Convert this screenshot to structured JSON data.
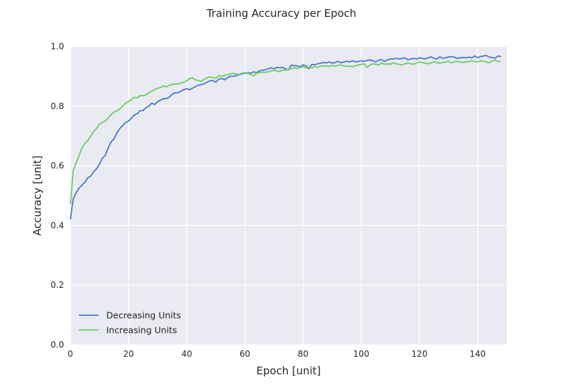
{
  "chart_data": {
    "type": "line",
    "title": "Training Accuracy per Epoch",
    "xlabel": "Epoch [unit]",
    "ylabel": "Accuracy [unit]",
    "xlim": [
      0,
      150
    ],
    "ylim": [
      0.0,
      1.0
    ],
    "xticks": [
      0,
      20,
      40,
      60,
      80,
      100,
      120,
      140
    ],
    "yticks": [
      0.0,
      0.2,
      0.4,
      0.6,
      0.8,
      1.0
    ],
    "xtick_labels": [
      "0",
      "20",
      "40",
      "60",
      "80",
      "100",
      "120",
      "140"
    ],
    "ytick_labels": [
      "0.0",
      "0.2",
      "0.4",
      "0.6",
      "0.8",
      "1.0"
    ],
    "grid": true,
    "background": "#eaeaf2",
    "legend_position": "lower-left",
    "series": [
      {
        "name": "Decreasing Units",
        "color": "#4878cf",
        "points": [
          [
            0,
            0.42
          ],
          [
            1,
            0.49
          ],
          [
            2,
            0.51
          ],
          [
            3,
            0.525
          ],
          [
            4,
            0.535
          ],
          [
            5,
            0.545
          ],
          [
            6,
            0.56
          ],
          [
            7,
            0.565
          ],
          [
            8,
            0.58
          ],
          [
            9,
            0.59
          ],
          [
            10,
            0.605
          ],
          [
            11,
            0.625
          ],
          [
            12,
            0.635
          ],
          [
            13,
            0.66
          ],
          [
            14,
            0.68
          ],
          [
            15,
            0.69
          ],
          [
            16,
            0.71
          ],
          [
            17,
            0.725
          ],
          [
            18,
            0.735
          ],
          [
            19,
            0.745
          ],
          [
            20,
            0.75
          ],
          [
            21,
            0.76
          ],
          [
            22,
            0.77
          ],
          [
            23,
            0.775
          ],
          [
            24,
            0.785
          ],
          [
            25,
            0.785
          ],
          [
            26,
            0.795
          ],
          [
            27,
            0.8
          ],
          [
            28,
            0.81
          ],
          [
            29,
            0.805
          ],
          [
            30,
            0.815
          ],
          [
            31,
            0.82
          ],
          [
            32,
            0.825
          ],
          [
            33,
            0.825
          ],
          [
            34,
            0.83
          ],
          [
            35,
            0.84
          ],
          [
            36,
            0.845
          ],
          [
            37,
            0.845
          ],
          [
            38,
            0.85
          ],
          [
            39,
            0.855
          ],
          [
            40,
            0.858
          ],
          [
            41,
            0.855
          ],
          [
            42,
            0.86
          ],
          [
            43,
            0.865
          ],
          [
            44,
            0.87
          ],
          [
            45,
            0.872
          ],
          [
            46,
            0.875
          ],
          [
            47,
            0.88
          ],
          [
            48,
            0.885
          ],
          [
            49,
            0.886
          ],
          [
            50,
            0.88
          ],
          [
            51,
            0.89
          ],
          [
            52,
            0.893
          ],
          [
            53,
            0.888
          ],
          [
            54,
            0.895
          ],
          [
            55,
            0.9
          ],
          [
            56,
            0.9
          ],
          [
            57,
            0.902
          ],
          [
            58,
            0.905
          ],
          [
            59,
            0.908
          ],
          [
            60,
            0.91
          ],
          [
            61,
            0.912
          ],
          [
            62,
            0.91
          ],
          [
            63,
            0.915
          ],
          [
            64,
            0.912
          ],
          [
            65,
            0.918
          ],
          [
            66,
            0.92
          ],
          [
            67,
            0.922
          ],
          [
            68,
            0.925
          ],
          [
            69,
            0.928
          ],
          [
            70,
            0.925
          ],
          [
            71,
            0.93
          ],
          [
            72,
            0.928
          ],
          [
            73,
            0.93
          ],
          [
            74,
            0.925
          ],
          [
            75,
            0.922
          ],
          [
            76,
            0.938
          ],
          [
            77,
            0.935
          ],
          [
            78,
            0.935
          ],
          [
            79,
            0.932
          ],
          [
            80,
            0.938
          ],
          [
            81,
            0.935
          ],
          [
            82,
            0.925
          ],
          [
            83,
            0.94
          ],
          [
            84,
            0.938
          ],
          [
            85,
            0.942
          ],
          [
            86,
            0.944
          ],
          [
            87,
            0.946
          ],
          [
            88,
            0.945
          ],
          [
            89,
            0.948
          ],
          [
            90,
            0.944
          ],
          [
            91,
            0.946
          ],
          [
            92,
            0.95
          ],
          [
            93,
            0.945
          ],
          [
            94,
            0.948
          ],
          [
            95,
            0.95
          ],
          [
            96,
            0.948
          ],
          [
            97,
            0.952
          ],
          [
            98,
            0.948
          ],
          [
            99,
            0.95
          ],
          [
            100,
            0.952
          ],
          [
            101,
            0.95
          ],
          [
            102,
            0.953
          ],
          [
            103,
            0.955
          ],
          [
            104,
            0.952
          ],
          [
            105,
            0.948
          ],
          [
            106,
            0.954
          ],
          [
            107,
            0.956
          ],
          [
            108,
            0.95
          ],
          [
            109,
            0.955
          ],
          [
            110,
            0.958
          ],
          [
            111,
            0.958
          ],
          [
            112,
            0.96
          ],
          [
            113,
            0.958
          ],
          [
            114,
            0.96
          ],
          [
            115,
            0.962
          ],
          [
            116,
            0.955
          ],
          [
            117,
            0.958
          ],
          [
            118,
            0.96
          ],
          [
            119,
            0.958
          ],
          [
            120,
            0.962
          ],
          [
            121,
            0.96
          ],
          [
            122,
            0.958
          ],
          [
            123,
            0.962
          ],
          [
            124,
            0.965
          ],
          [
            125,
            0.96
          ],
          [
            126,
            0.958
          ],
          [
            127,
            0.965
          ],
          [
            128,
            0.96
          ],
          [
            129,
            0.962
          ],
          [
            130,
            0.965
          ],
          [
            131,
            0.966
          ],
          [
            132,
            0.964
          ],
          [
            133,
            0.96
          ],
          [
            134,
            0.962
          ],
          [
            135,
            0.963
          ],
          [
            136,
            0.962
          ],
          [
            137,
            0.964
          ],
          [
            138,
            0.962
          ],
          [
            139,
            0.968
          ],
          [
            140,
            0.962
          ],
          [
            141,
            0.966
          ],
          [
            142,
            0.968
          ],
          [
            143,
            0.97
          ],
          [
            144,
            0.964
          ],
          [
            145,
            0.963
          ],
          [
            146,
            0.96
          ],
          [
            147,
            0.968
          ],
          [
            148,
            0.966
          ]
        ]
      },
      {
        "name": "Increasing Units",
        "color": "#6acc65",
        "points": [
          [
            0,
            0.47
          ],
          [
            1,
            0.585
          ],
          [
            2,
            0.61
          ],
          [
            3,
            0.635
          ],
          [
            4,
            0.66
          ],
          [
            5,
            0.675
          ],
          [
            6,
            0.685
          ],
          [
            7,
            0.7
          ],
          [
            8,
            0.715
          ],
          [
            9,
            0.725
          ],
          [
            10,
            0.74
          ],
          [
            11,
            0.745
          ],
          [
            12,
            0.75
          ],
          [
            13,
            0.76
          ],
          [
            14,
            0.772
          ],
          [
            15,
            0.78
          ],
          [
            16,
            0.785
          ],
          [
            17,
            0.79
          ],
          [
            18,
            0.8
          ],
          [
            19,
            0.81
          ],
          [
            20,
            0.815
          ],
          [
            21,
            0.822
          ],
          [
            22,
            0.83
          ],
          [
            23,
            0.828
          ],
          [
            24,
            0.835
          ],
          [
            25,
            0.835
          ],
          [
            26,
            0.838
          ],
          [
            27,
            0.845
          ],
          [
            28,
            0.85
          ],
          [
            29,
            0.855
          ],
          [
            30,
            0.86
          ],
          [
            31,
            0.862
          ],
          [
            32,
            0.868
          ],
          [
            33,
            0.865
          ],
          [
            34,
            0.87
          ],
          [
            35,
            0.872
          ],
          [
            36,
            0.875
          ],
          [
            37,
            0.874
          ],
          [
            38,
            0.878
          ],
          [
            39,
            0.88
          ],
          [
            40,
            0.885
          ],
          [
            41,
            0.892
          ],
          [
            42,
            0.895
          ],
          [
            43,
            0.888
          ],
          [
            44,
            0.886
          ],
          [
            45,
            0.883
          ],
          [
            46,
            0.89
          ],
          [
            47,
            0.895
          ],
          [
            48,
            0.898
          ],
          [
            49,
            0.896
          ],
          [
            50,
            0.893
          ],
          [
            51,
            0.902
          ],
          [
            52,
            0.9
          ],
          [
            53,
            0.903
          ],
          [
            54,
            0.905
          ],
          [
            55,
            0.908
          ],
          [
            56,
            0.91
          ],
          [
            57,
            0.908
          ],
          [
            58,
            0.906
          ],
          [
            59,
            0.91
          ],
          [
            60,
            0.912
          ],
          [
            61,
            0.91
          ],
          [
            62,
            0.905
          ],
          [
            63,
            0.902
          ],
          [
            64,
            0.91
          ],
          [
            65,
            0.912
          ],
          [
            66,
            0.914
          ],
          [
            67,
            0.913
          ],
          [
            68,
            0.915
          ],
          [
            69,
            0.917
          ],
          [
            70,
            0.92
          ],
          [
            71,
            0.918
          ],
          [
            72,
            0.915
          ],
          [
            73,
            0.922
          ],
          [
            74,
            0.92
          ],
          [
            75,
            0.925
          ],
          [
            76,
            0.925
          ],
          [
            77,
            0.928
          ],
          [
            78,
            0.926
          ],
          [
            79,
            0.93
          ],
          [
            80,
            0.932
          ],
          [
            81,
            0.928
          ],
          [
            82,
            0.93
          ],
          [
            83,
            0.928
          ],
          [
            84,
            0.932
          ],
          [
            85,
            0.93
          ],
          [
            86,
            0.935
          ],
          [
            87,
            0.934
          ],
          [
            88,
            0.935
          ],
          [
            89,
            0.933
          ],
          [
            90,
            0.936
          ],
          [
            91,
            0.934
          ],
          [
            92,
            0.936
          ],
          [
            93,
            0.938
          ],
          [
            94,
            0.935
          ],
          [
            95,
            0.933
          ],
          [
            96,
            0.934
          ],
          [
            97,
            0.932
          ],
          [
            98,
            0.935
          ],
          [
            99,
            0.938
          ],
          [
            100,
            0.94
          ],
          [
            101,
            0.942
          ],
          [
            102,
            0.93
          ],
          [
            103,
            0.938
          ],
          [
            104,
            0.942
          ],
          [
            105,
            0.94
          ],
          [
            106,
            0.938
          ],
          [
            107,
            0.945
          ],
          [
            108,
            0.94
          ],
          [
            109,
            0.942
          ],
          [
            110,
            0.94
          ],
          [
            111,
            0.945
          ],
          [
            112,
            0.942
          ],
          [
            113,
            0.94
          ],
          [
            114,
            0.938
          ],
          [
            115,
            0.942
          ],
          [
            116,
            0.944
          ],
          [
            117,
            0.942
          ],
          [
            118,
            0.94
          ],
          [
            119,
            0.945
          ],
          [
            120,
            0.948
          ],
          [
            121,
            0.946
          ],
          [
            122,
            0.944
          ],
          [
            123,
            0.942
          ],
          [
            124,
            0.945
          ],
          [
            125,
            0.948
          ],
          [
            126,
            0.946
          ],
          [
            127,
            0.944
          ],
          [
            128,
            0.946
          ],
          [
            129,
            0.948
          ],
          [
            130,
            0.95
          ],
          [
            131,
            0.945
          ],
          [
            132,
            0.948
          ],
          [
            133,
            0.95
          ],
          [
            134,
            0.948
          ],
          [
            135,
            0.946
          ],
          [
            136,
            0.948
          ],
          [
            137,
            0.95
          ],
          [
            138,
            0.952
          ],
          [
            139,
            0.95
          ],
          [
            140,
            0.948
          ],
          [
            141,
            0.952
          ],
          [
            142,
            0.95
          ],
          [
            143,
            0.948
          ],
          [
            144,
            0.945
          ],
          [
            145,
            0.952
          ],
          [
            146,
            0.953
          ],
          [
            147,
            0.95
          ],
          [
            148,
            0.95
          ]
        ]
      }
    ]
  }
}
